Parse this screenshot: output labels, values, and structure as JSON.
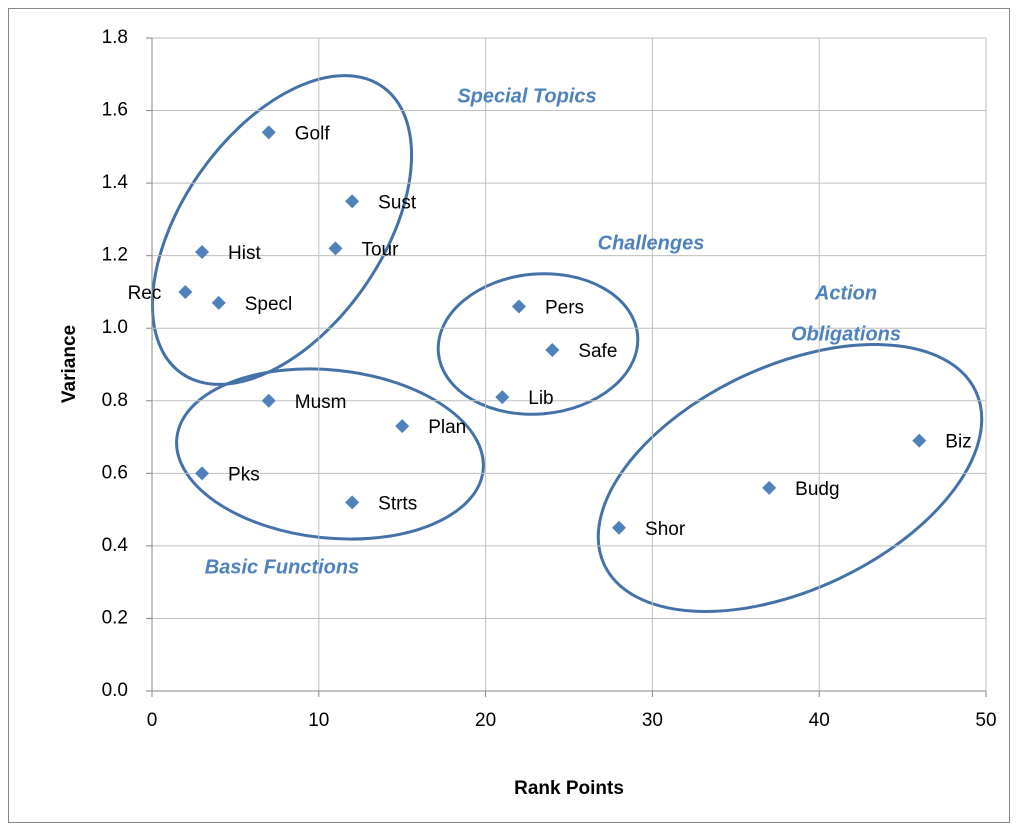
{
  "chart_data": {
    "type": "scatter",
    "x": [
      7,
      12,
      3,
      11,
      2,
      4,
      22,
      24,
      21,
      7,
      15,
      3,
      12,
      46,
      37,
      28
    ],
    "values": [
      1.54,
      1.35,
      1.21,
      1.22,
      1.1,
      1.07,
      1.06,
      0.94,
      0.81,
      0.8,
      0.73,
      0.6,
      0.52,
      0.69,
      0.56,
      0.45
    ],
    "point_labels": [
      "Golf",
      "Sust",
      "Hist",
      "Tour",
      "Rec",
      "Specl",
      "Pers",
      "Safe",
      "Lib",
      "Musm",
      "Plan",
      "Pks",
      "Strts",
      "Biz",
      "Budg",
      "Shor"
    ],
    "color": "#4f81bd",
    "xlabel": "Rank Points",
    "ylabel": "Variance",
    "xlim": [
      0,
      50
    ],
    "xticks": [
      0,
      10,
      20,
      30,
      40,
      50
    ],
    "ylim": [
      0,
      1.8
    ],
    "yticks": [
      {
        "value": 0,
        "label": "0.0"
      },
      0.2,
      0.4,
      0.6,
      0.8,
      {
        "value": 1,
        "label": "1.0"
      },
      1.2,
      1.4,
      1.6,
      1.8
    ],
    "grid": true,
    "annotations": [
      {
        "lines": [
          "Special Topics"
        ]
      },
      {
        "lines": [
          "Challenges"
        ]
      },
      {
        "lines": [
          "Action",
          "Obligations"
        ]
      },
      {
        "lines": [
          "Basic Functions"
        ]
      }
    ]
  }
}
